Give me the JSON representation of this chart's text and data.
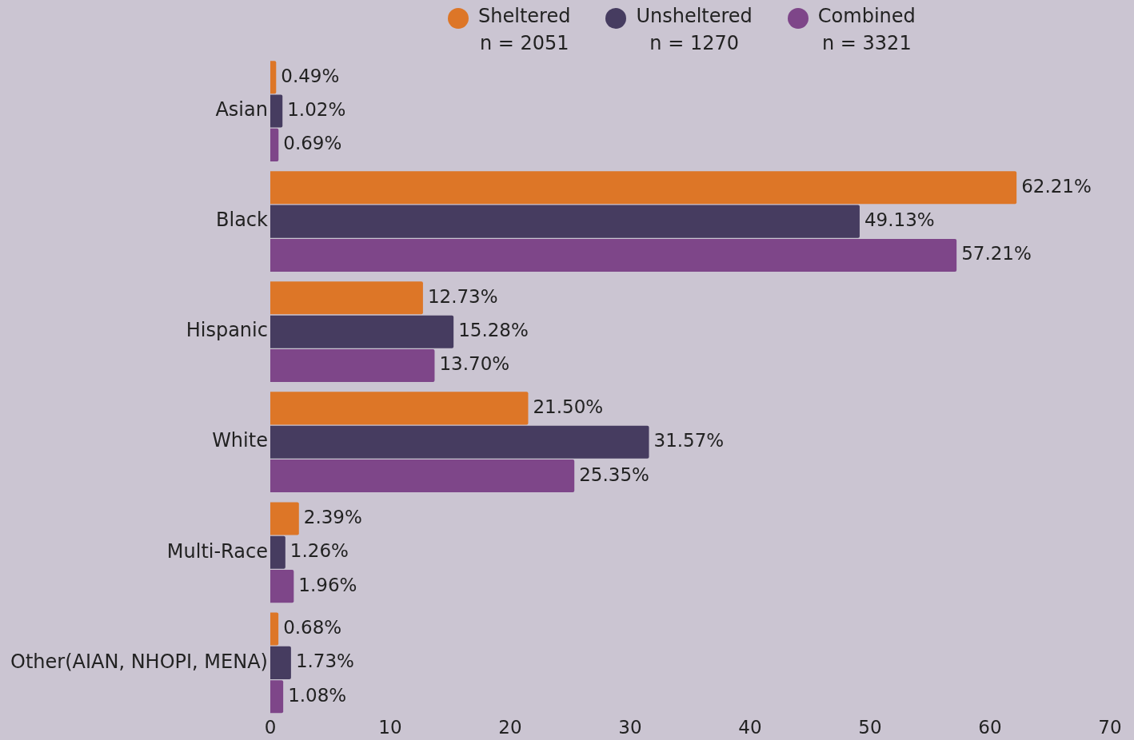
{
  "chart_data": {
    "type": "bar",
    "orientation": "horizontal",
    "categories": [
      "Asian",
      "Black",
      "Hispanic",
      "White",
      "Multi-Race",
      "Other(AIAN, NHOPI, MENA)"
    ],
    "series": [
      {
        "name": "Sheltered\nn = 2051",
        "color": "#dd7627",
        "values": [
          0.49,
          62.21,
          12.73,
          21.5,
          2.39,
          0.68
        ],
        "value_labels": [
          "0.49%",
          "62.21%",
          "12.73%",
          "21.50%",
          "2.39%",
          "0.68%"
        ]
      },
      {
        "name": "Unsheltered\nn = 1270",
        "color": "#463c60",
        "values": [
          1.02,
          49.13,
          15.28,
          31.57,
          1.26,
          1.73
        ],
        "value_labels": [
          "1.02%",
          "49.13%",
          "15.28%",
          "31.57%",
          "1.26%",
          "1.73%"
        ]
      },
      {
        "name": "Combined\nn = 3321",
        "color": "#7e4689",
        "values": [
          0.69,
          57.21,
          13.7,
          25.35,
          1.96,
          1.08
        ],
        "value_labels": [
          "0.69%",
          "57.21%",
          "13.70%",
          "25.35%",
          "1.96%",
          "1.08%"
        ]
      }
    ],
    "xlim": [
      0,
      70
    ],
    "xticks": [
      0,
      10,
      20,
      30,
      40,
      50,
      60,
      70
    ],
    "grid": false,
    "legend": "top"
  }
}
